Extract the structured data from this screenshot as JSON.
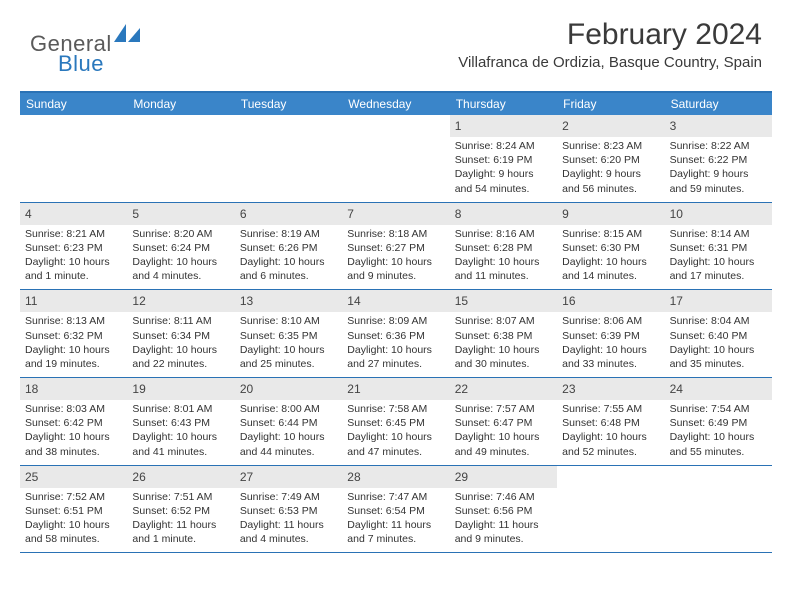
{
  "logo": {
    "general": "General",
    "blue": "Blue"
  },
  "title": "February 2024",
  "location": "Villafranca de Ordizia, Basque Country, Spain",
  "colors": {
    "header_bar": "#3a85c9",
    "border": "#2a72b5",
    "daynum_bg": "#e9e9e9",
    "text": "#313131",
    "logo_gray": "#5a5a5a",
    "logo_blue": "#2a78bd"
  },
  "dow": [
    "Sunday",
    "Monday",
    "Tuesday",
    "Wednesday",
    "Thursday",
    "Friday",
    "Saturday"
  ],
  "weeks": [
    [
      null,
      null,
      null,
      null,
      {
        "n": "1",
        "sr": "Sunrise: 8:24 AM",
        "ss": "Sunset: 6:19 PM",
        "d1": "Daylight: 9 hours",
        "d2": "and 54 minutes."
      },
      {
        "n": "2",
        "sr": "Sunrise: 8:23 AM",
        "ss": "Sunset: 6:20 PM",
        "d1": "Daylight: 9 hours",
        "d2": "and 56 minutes."
      },
      {
        "n": "3",
        "sr": "Sunrise: 8:22 AM",
        "ss": "Sunset: 6:22 PM",
        "d1": "Daylight: 9 hours",
        "d2": "and 59 minutes."
      }
    ],
    [
      {
        "n": "4",
        "sr": "Sunrise: 8:21 AM",
        "ss": "Sunset: 6:23 PM",
        "d1": "Daylight: 10 hours",
        "d2": "and 1 minute."
      },
      {
        "n": "5",
        "sr": "Sunrise: 8:20 AM",
        "ss": "Sunset: 6:24 PM",
        "d1": "Daylight: 10 hours",
        "d2": "and 4 minutes."
      },
      {
        "n": "6",
        "sr": "Sunrise: 8:19 AM",
        "ss": "Sunset: 6:26 PM",
        "d1": "Daylight: 10 hours",
        "d2": "and 6 minutes."
      },
      {
        "n": "7",
        "sr": "Sunrise: 8:18 AM",
        "ss": "Sunset: 6:27 PM",
        "d1": "Daylight: 10 hours",
        "d2": "and 9 minutes."
      },
      {
        "n": "8",
        "sr": "Sunrise: 8:16 AM",
        "ss": "Sunset: 6:28 PM",
        "d1": "Daylight: 10 hours",
        "d2": "and 11 minutes."
      },
      {
        "n": "9",
        "sr": "Sunrise: 8:15 AM",
        "ss": "Sunset: 6:30 PM",
        "d1": "Daylight: 10 hours",
        "d2": "and 14 minutes."
      },
      {
        "n": "10",
        "sr": "Sunrise: 8:14 AM",
        "ss": "Sunset: 6:31 PM",
        "d1": "Daylight: 10 hours",
        "d2": "and 17 minutes."
      }
    ],
    [
      {
        "n": "11",
        "sr": "Sunrise: 8:13 AM",
        "ss": "Sunset: 6:32 PM",
        "d1": "Daylight: 10 hours",
        "d2": "and 19 minutes."
      },
      {
        "n": "12",
        "sr": "Sunrise: 8:11 AM",
        "ss": "Sunset: 6:34 PM",
        "d1": "Daylight: 10 hours",
        "d2": "and 22 minutes."
      },
      {
        "n": "13",
        "sr": "Sunrise: 8:10 AM",
        "ss": "Sunset: 6:35 PM",
        "d1": "Daylight: 10 hours",
        "d2": "and 25 minutes."
      },
      {
        "n": "14",
        "sr": "Sunrise: 8:09 AM",
        "ss": "Sunset: 6:36 PM",
        "d1": "Daylight: 10 hours",
        "d2": "and 27 minutes."
      },
      {
        "n": "15",
        "sr": "Sunrise: 8:07 AM",
        "ss": "Sunset: 6:38 PM",
        "d1": "Daylight: 10 hours",
        "d2": "and 30 minutes."
      },
      {
        "n": "16",
        "sr": "Sunrise: 8:06 AM",
        "ss": "Sunset: 6:39 PM",
        "d1": "Daylight: 10 hours",
        "d2": "and 33 minutes."
      },
      {
        "n": "17",
        "sr": "Sunrise: 8:04 AM",
        "ss": "Sunset: 6:40 PM",
        "d1": "Daylight: 10 hours",
        "d2": "and 35 minutes."
      }
    ],
    [
      {
        "n": "18",
        "sr": "Sunrise: 8:03 AM",
        "ss": "Sunset: 6:42 PM",
        "d1": "Daylight: 10 hours",
        "d2": "and 38 minutes."
      },
      {
        "n": "19",
        "sr": "Sunrise: 8:01 AM",
        "ss": "Sunset: 6:43 PM",
        "d1": "Daylight: 10 hours",
        "d2": "and 41 minutes."
      },
      {
        "n": "20",
        "sr": "Sunrise: 8:00 AM",
        "ss": "Sunset: 6:44 PM",
        "d1": "Daylight: 10 hours",
        "d2": "and 44 minutes."
      },
      {
        "n": "21",
        "sr": "Sunrise: 7:58 AM",
        "ss": "Sunset: 6:45 PM",
        "d1": "Daylight: 10 hours",
        "d2": "and 47 minutes."
      },
      {
        "n": "22",
        "sr": "Sunrise: 7:57 AM",
        "ss": "Sunset: 6:47 PM",
        "d1": "Daylight: 10 hours",
        "d2": "and 49 minutes."
      },
      {
        "n": "23",
        "sr": "Sunrise: 7:55 AM",
        "ss": "Sunset: 6:48 PM",
        "d1": "Daylight: 10 hours",
        "d2": "and 52 minutes."
      },
      {
        "n": "24",
        "sr": "Sunrise: 7:54 AM",
        "ss": "Sunset: 6:49 PM",
        "d1": "Daylight: 10 hours",
        "d2": "and 55 minutes."
      }
    ],
    [
      {
        "n": "25",
        "sr": "Sunrise: 7:52 AM",
        "ss": "Sunset: 6:51 PM",
        "d1": "Daylight: 10 hours",
        "d2": "and 58 minutes."
      },
      {
        "n": "26",
        "sr": "Sunrise: 7:51 AM",
        "ss": "Sunset: 6:52 PM",
        "d1": "Daylight: 11 hours",
        "d2": "and 1 minute."
      },
      {
        "n": "27",
        "sr": "Sunrise: 7:49 AM",
        "ss": "Sunset: 6:53 PM",
        "d1": "Daylight: 11 hours",
        "d2": "and 4 minutes."
      },
      {
        "n": "28",
        "sr": "Sunrise: 7:47 AM",
        "ss": "Sunset: 6:54 PM",
        "d1": "Daylight: 11 hours",
        "d2": "and 7 minutes."
      },
      {
        "n": "29",
        "sr": "Sunrise: 7:46 AM",
        "ss": "Sunset: 6:56 PM",
        "d1": "Daylight: 11 hours",
        "d2": "and 9 minutes."
      },
      null,
      null
    ]
  ]
}
